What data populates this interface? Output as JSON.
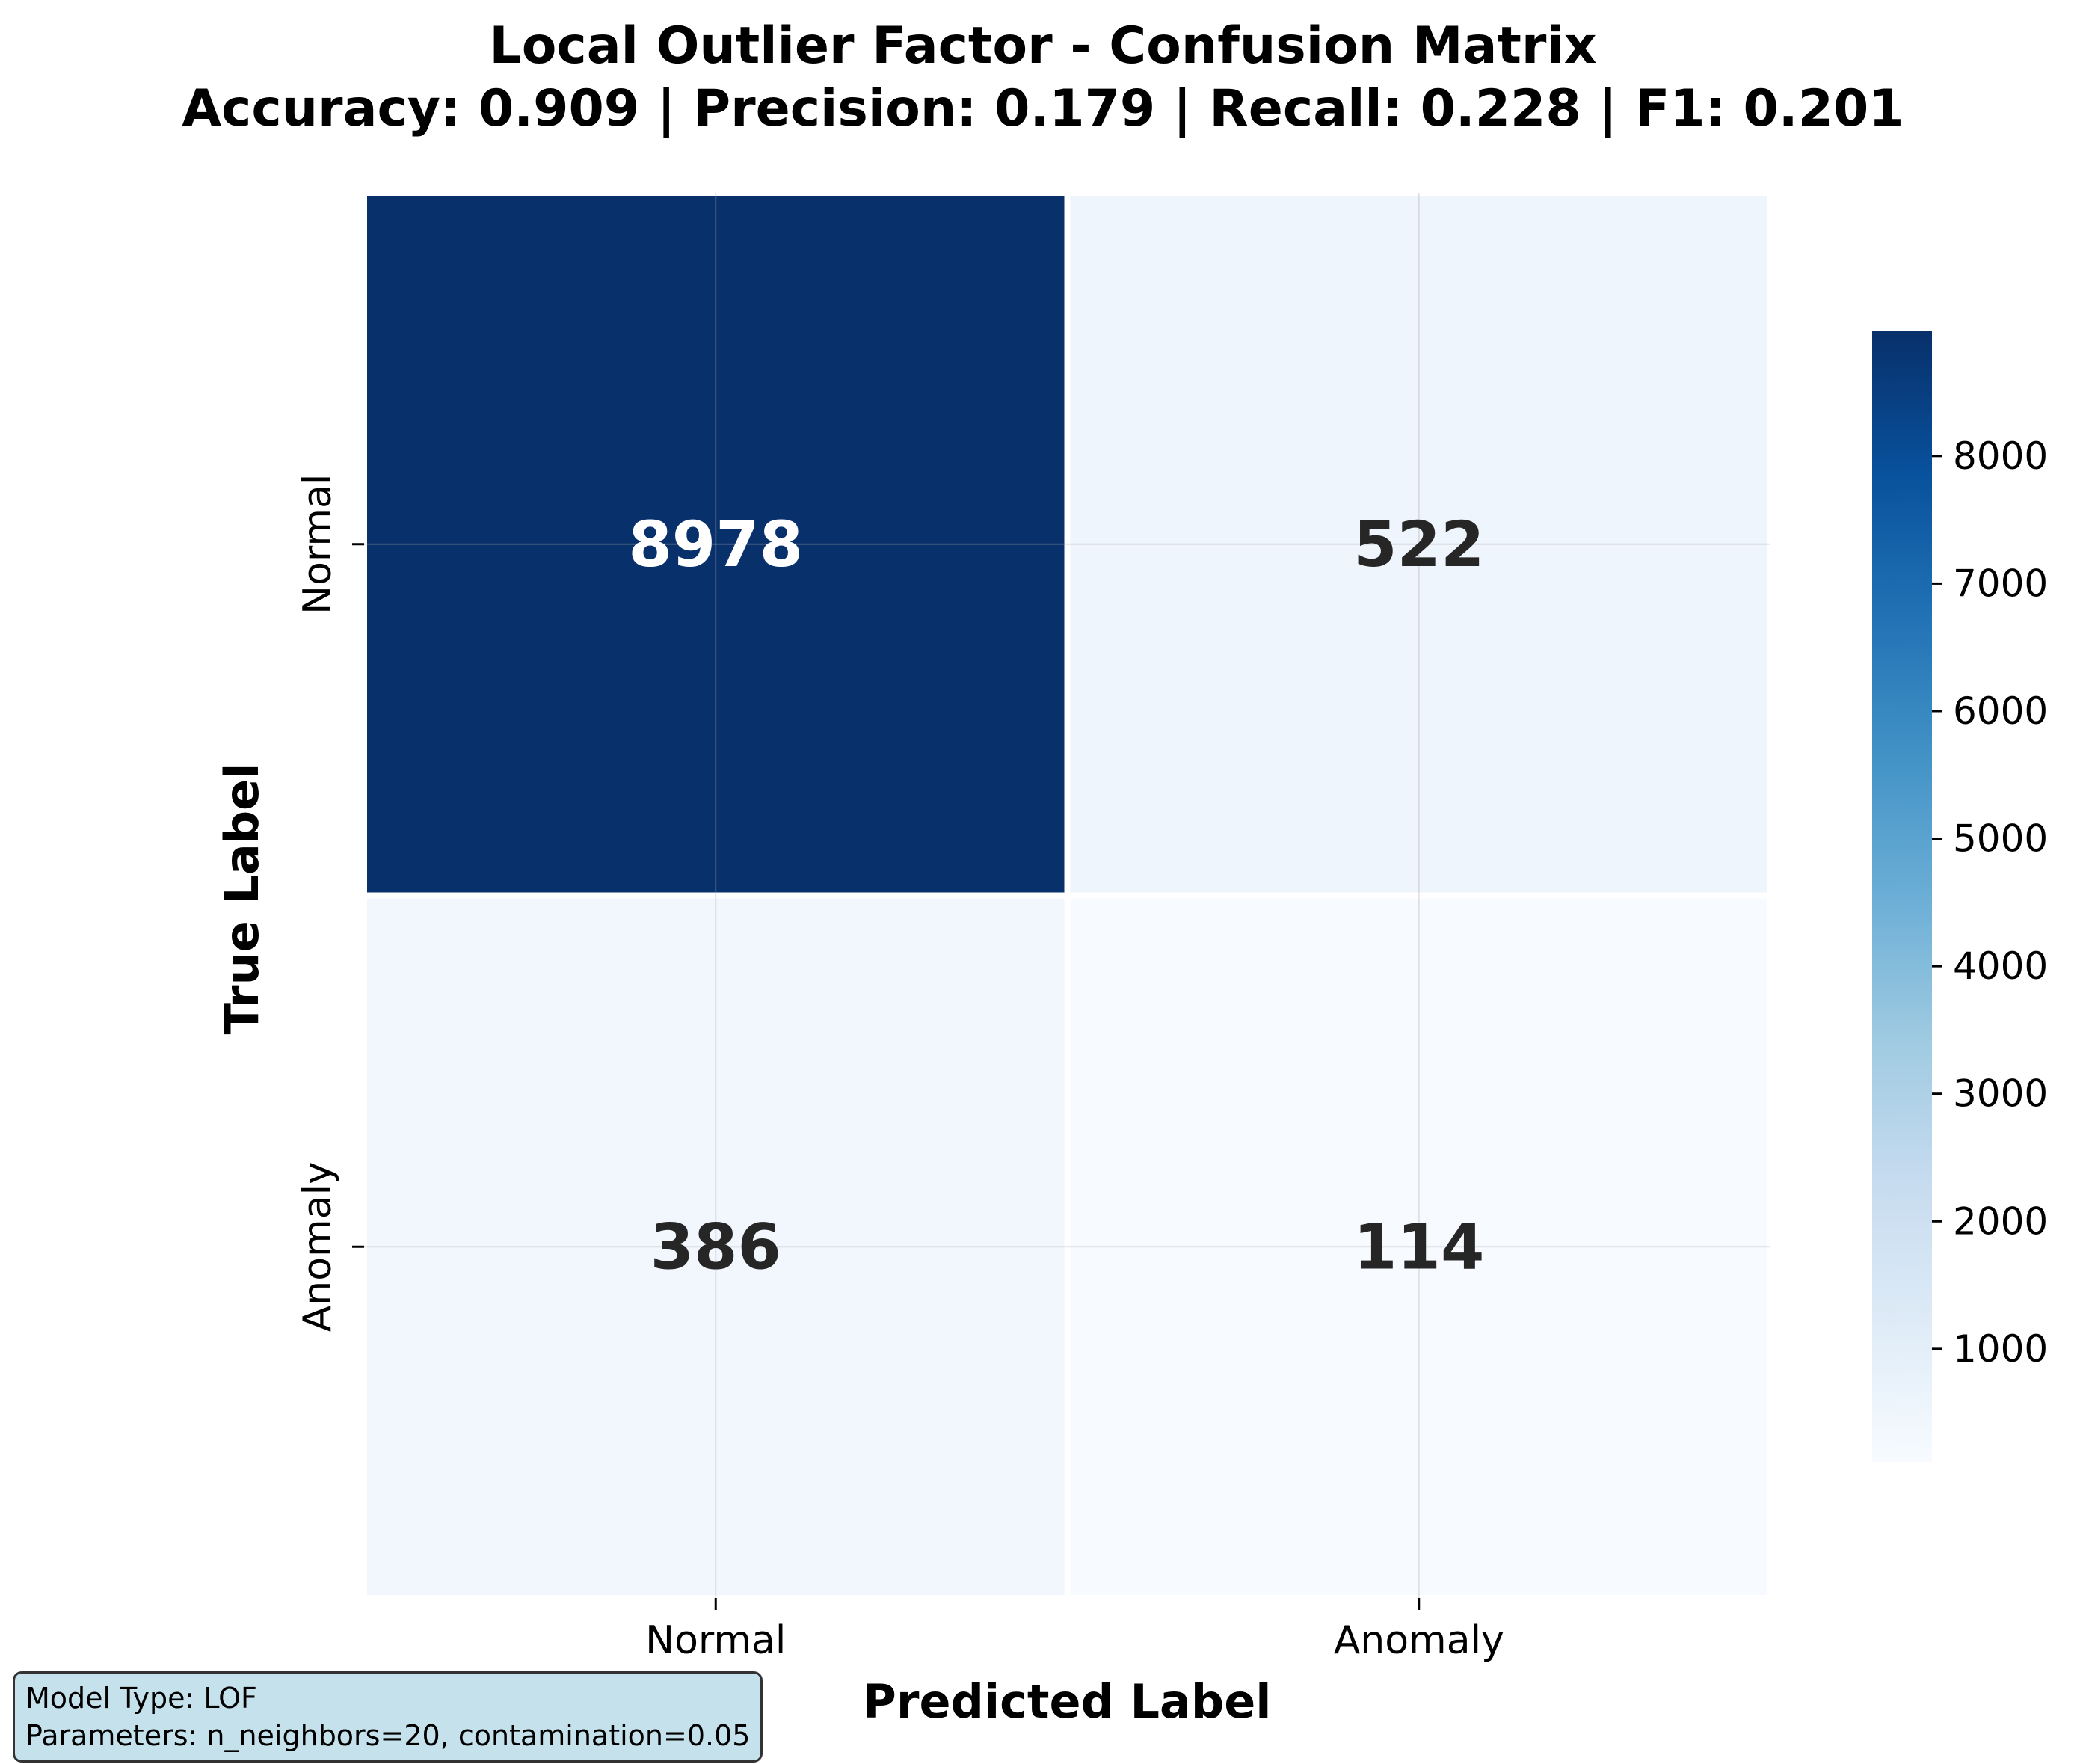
{
  "chart_data": {
    "type": "heatmap",
    "title": "Local Outlier Factor - Confusion Matrix",
    "subtitle": "Accuracy: 0.909 | Precision: 0.179 | Recall: 0.228 | F1: 0.201",
    "xlabel": "Predicted Label",
    "ylabel": "True Label",
    "x_categories": [
      "Normal",
      "Anomaly"
    ],
    "y_categories": [
      "Normal",
      "Anomaly"
    ],
    "matrix": [
      [
        8978,
        522
      ],
      [
        386,
        114
      ]
    ],
    "colormap": "Blues",
    "colorbar": {
      "min": 114,
      "max": 8978,
      "ticks": [
        1000,
        2000,
        3000,
        4000,
        5000,
        6000,
        7000,
        8000
      ]
    },
    "grid": true
  },
  "info_box": {
    "model_type": "Model Type: LOF",
    "parameters": "Parameters: n_neighbors=20, contamination=0.05"
  }
}
